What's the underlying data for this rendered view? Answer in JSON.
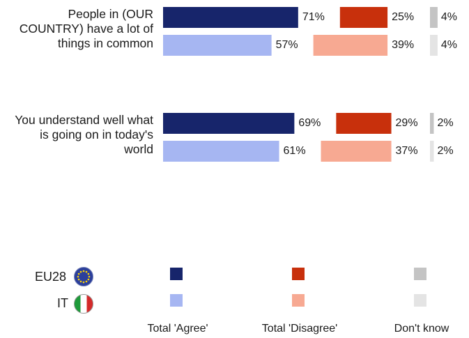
{
  "colors": {
    "eu_agree": "#17256b",
    "it_agree": "#a6b6f2",
    "eu_disagree": "#c8300c",
    "it_disagree": "#f7a992",
    "eu_dk": "#c4c4c4",
    "it_dk": "#e4e4e4"
  },
  "legend": {
    "eu_label": "EU28",
    "it_label": "IT",
    "agree": "Total 'Agree'",
    "disagree": "Total 'Disagree'",
    "dont_know": "Don't know"
  },
  "chart_data": {
    "type": "bar",
    "orientation": "horizontal-grouped",
    "categories": [
      "People in (OUR COUNTRY) have a lot of things in common",
      "You understand well what is going on in today's world"
    ],
    "category_lines": [
      [
        "People in (OUR",
        "COUNTRY) have a lot of",
        "things in common"
      ],
      [
        "You understand well what",
        "is going on in today's",
        "world"
      ]
    ],
    "series": [
      {
        "name": "EU28",
        "agree": [
          71,
          69
        ],
        "disagree": [
          25,
          29
        ],
        "dont_know": [
          4,
          2
        ]
      },
      {
        "name": "IT",
        "agree": [
          57,
          61
        ],
        "disagree": [
          39,
          37
        ],
        "dont_know": [
          4,
          2
        ]
      }
    ],
    "value_labels": {
      "EU28": {
        "agree": [
          "71%",
          "69%"
        ],
        "disagree": [
          "25%",
          "29%"
        ],
        "dont_know": [
          "4%",
          "2%"
        ]
      },
      "IT": {
        "agree": [
          "57%",
          "61%"
        ],
        "disagree": [
          "39%",
          "37%"
        ],
        "dont_know": [
          "4%",
          "2%"
        ]
      }
    },
    "unit": "%"
  }
}
